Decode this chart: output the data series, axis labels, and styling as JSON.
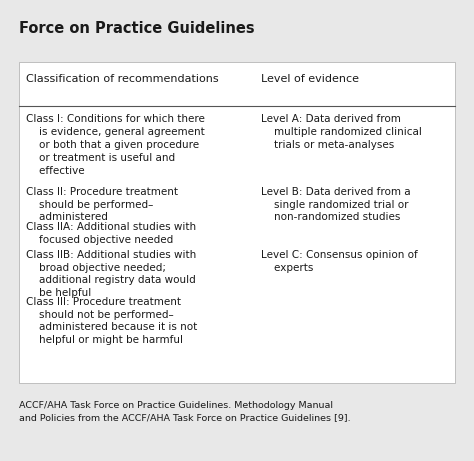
{
  "title": "Force on Practice Guidelines",
  "bg_color": "#e8e8e8",
  "table_bg": "#ffffff",
  "text_color": "#1a1a1a",
  "col1_header": "Classification of recommendations",
  "col2_header": "Level of evidence",
  "col1_entries": [
    "Class I: Conditions for which there\n    is evidence, general agreement\n    or both that a given procedure\n    or treatment is useful and\n    effective",
    "Class II: Procedure treatment\n    should be performed–\n    administered",
    "Class IIA: Additional studies with\n    focused objective needed",
    "Class IIB: Additional studies with\n    broad objective needed;\n    additional registry data would\n    be helpful",
    "Class III: Procedure treatment\n    should not be performed–\n    administered because it is not\n    helpful or might be harmful"
  ],
  "col2_entries": [
    "Level A: Data derived from\n    multiple randomized clinical\n    trials or meta-analyses",
    "Level B: Data derived from a\n    single randomized trial or\n    non-randomized studies",
    "",
    "Level C: Consensus opinion of\n    experts",
    ""
  ],
  "col2_row_align": [
    0,
    1,
    -1,
    3,
    -1
  ],
  "footnote": "ACCF/AHA Task Force on Practice Guidelines. Methodology Manual\nand Policies from the ACCF/AHA Task Force on Practice Guidelines [9].",
  "font_size": 7.5,
  "header_font_size": 8.0,
  "title_font_size": 10.5
}
